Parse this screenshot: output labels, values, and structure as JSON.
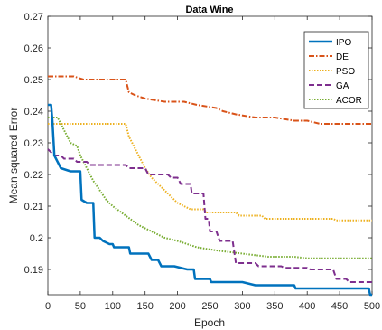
{
  "chart_data": {
    "type": "line",
    "title": "Data Wine",
    "xlabel": "Epoch",
    "ylabel": "Mean squared Error",
    "xlim": [
      0,
      500
    ],
    "ylim": [
      0.182,
      0.27
    ],
    "x_ticks": [
      0,
      50,
      100,
      150,
      200,
      250,
      300,
      350,
      400,
      450,
      500
    ],
    "y_ticks": [
      0.19,
      0.2,
      0.21,
      0.22,
      0.23,
      0.24,
      0.25,
      0.26,
      0.27
    ],
    "y_tick_labels": [
      "0.19",
      "0.2",
      "0.21",
      "0.22",
      "0.23",
      "0.24",
      "0.25",
      "0.26",
      "0.27"
    ],
    "grid": false,
    "legend_position": "top-right",
    "series": [
      {
        "name": "IPO",
        "color": "#0072BD",
        "style": "solid",
        "points": [
          [
            0,
            0.242
          ],
          [
            5,
            0.242
          ],
          [
            7,
            0.237
          ],
          [
            10,
            0.226
          ],
          [
            15,
            0.224
          ],
          [
            20,
            0.222
          ],
          [
            35,
            0.221
          ],
          [
            50,
            0.221
          ],
          [
            52,
            0.212
          ],
          [
            60,
            0.211
          ],
          [
            70,
            0.211
          ],
          [
            72,
            0.2
          ],
          [
            80,
            0.2
          ],
          [
            85,
            0.199
          ],
          [
            95,
            0.198
          ],
          [
            100,
            0.198
          ],
          [
            102,
            0.197
          ],
          [
            115,
            0.197
          ],
          [
            125,
            0.197
          ],
          [
            127,
            0.195
          ],
          [
            140,
            0.195
          ],
          [
            155,
            0.195
          ],
          [
            160,
            0.193
          ],
          [
            170,
            0.193
          ],
          [
            175,
            0.191
          ],
          [
            195,
            0.191
          ],
          [
            215,
            0.19
          ],
          [
            225,
            0.19
          ],
          [
            227,
            0.187
          ],
          [
            240,
            0.187
          ],
          [
            250,
            0.187
          ],
          [
            252,
            0.186
          ],
          [
            280,
            0.186
          ],
          [
            300,
            0.186
          ],
          [
            320,
            0.185
          ],
          [
            350,
            0.185
          ],
          [
            380,
            0.185
          ],
          [
            382,
            0.184
          ],
          [
            420,
            0.184
          ],
          [
            450,
            0.184
          ],
          [
            480,
            0.184
          ],
          [
            495,
            0.184
          ],
          [
            497,
            0.182
          ],
          [
            500,
            0.182
          ]
        ]
      },
      {
        "name": "DE",
        "color": "#D95319",
        "style": "dashdot",
        "points": [
          [
            0,
            0.251
          ],
          [
            20,
            0.251
          ],
          [
            40,
            0.251
          ],
          [
            55,
            0.25
          ],
          [
            120,
            0.25
          ],
          [
            125,
            0.246
          ],
          [
            135,
            0.245
          ],
          [
            150,
            0.244
          ],
          [
            180,
            0.243
          ],
          [
            210,
            0.243
          ],
          [
            230,
            0.242
          ],
          [
            260,
            0.241
          ],
          [
            270,
            0.24
          ],
          [
            290,
            0.239
          ],
          [
            320,
            0.238
          ],
          [
            350,
            0.238
          ],
          [
            380,
            0.237
          ],
          [
            400,
            0.237
          ],
          [
            420,
            0.236
          ],
          [
            500,
            0.236
          ]
        ]
      },
      {
        "name": "PSO",
        "color": "#EDB120",
        "style": "dotted",
        "points": [
          [
            0,
            0.236
          ],
          [
            50,
            0.236
          ],
          [
            100,
            0.236
          ],
          [
            120,
            0.236
          ],
          [
            125,
            0.232
          ],
          [
            130,
            0.23
          ],
          [
            140,
            0.226
          ],
          [
            150,
            0.222
          ],
          [
            160,
            0.219
          ],
          [
            170,
            0.217
          ],
          [
            180,
            0.215
          ],
          [
            190,
            0.213
          ],
          [
            200,
            0.211
          ],
          [
            210,
            0.21
          ],
          [
            220,
            0.209
          ],
          [
            230,
            0.209
          ],
          [
            240,
            0.209
          ],
          [
            245,
            0.208
          ],
          [
            280,
            0.208
          ],
          [
            290,
            0.208
          ],
          [
            295,
            0.207
          ],
          [
            320,
            0.207
          ],
          [
            330,
            0.207
          ],
          [
            335,
            0.206
          ],
          [
            400,
            0.206
          ],
          [
            440,
            0.206
          ],
          [
            445,
            0.2055
          ],
          [
            500,
            0.2055
          ]
        ]
      },
      {
        "name": "GA",
        "color": "#7E2F8E",
        "style": "dashed",
        "points": [
          [
            0,
            0.228
          ],
          [
            10,
            0.226
          ],
          [
            20,
            0.226
          ],
          [
            25,
            0.225
          ],
          [
            40,
            0.225
          ],
          [
            45,
            0.224
          ],
          [
            60,
            0.224
          ],
          [
            65,
            0.223
          ],
          [
            120,
            0.223
          ],
          [
            125,
            0.222
          ],
          [
            150,
            0.222
          ],
          [
            155,
            0.22
          ],
          [
            185,
            0.22
          ],
          [
            190,
            0.219
          ],
          [
            200,
            0.219
          ],
          [
            205,
            0.217
          ],
          [
            220,
            0.217
          ],
          [
            222,
            0.214
          ],
          [
            240,
            0.214
          ],
          [
            243,
            0.206
          ],
          [
            248,
            0.206
          ],
          [
            250,
            0.202
          ],
          [
            260,
            0.202
          ],
          [
            265,
            0.199
          ],
          [
            285,
            0.199
          ],
          [
            290,
            0.192
          ],
          [
            320,
            0.192
          ],
          [
            325,
            0.191
          ],
          [
            360,
            0.191
          ],
          [
            365,
            0.1905
          ],
          [
            400,
            0.1905
          ],
          [
            405,
            0.19
          ],
          [
            440,
            0.19
          ],
          [
            445,
            0.187
          ],
          [
            460,
            0.187
          ],
          [
            465,
            0.186
          ],
          [
            500,
            0.186
          ]
        ]
      },
      {
        "name": "ACOR",
        "color": "#77AC30",
        "style": "dotted",
        "points": [
          [
            0,
            0.238
          ],
          [
            15,
            0.238
          ],
          [
            20,
            0.236
          ],
          [
            25,
            0.234
          ],
          [
            30,
            0.232
          ],
          [
            35,
            0.23
          ],
          [
            45,
            0.229
          ],
          [
            50,
            0.226
          ],
          [
            60,
            0.222
          ],
          [
            70,
            0.218
          ],
          [
            80,
            0.215
          ],
          [
            90,
            0.212
          ],
          [
            100,
            0.21
          ],
          [
            120,
            0.207
          ],
          [
            140,
            0.204
          ],
          [
            160,
            0.202
          ],
          [
            180,
            0.2
          ],
          [
            200,
            0.199
          ],
          [
            230,
            0.197
          ],
          [
            260,
            0.196
          ],
          [
            300,
            0.195
          ],
          [
            340,
            0.194
          ],
          [
            380,
            0.194
          ],
          [
            400,
            0.1935
          ],
          [
            450,
            0.1935
          ],
          [
            500,
            0.1935
          ]
        ]
      }
    ]
  }
}
